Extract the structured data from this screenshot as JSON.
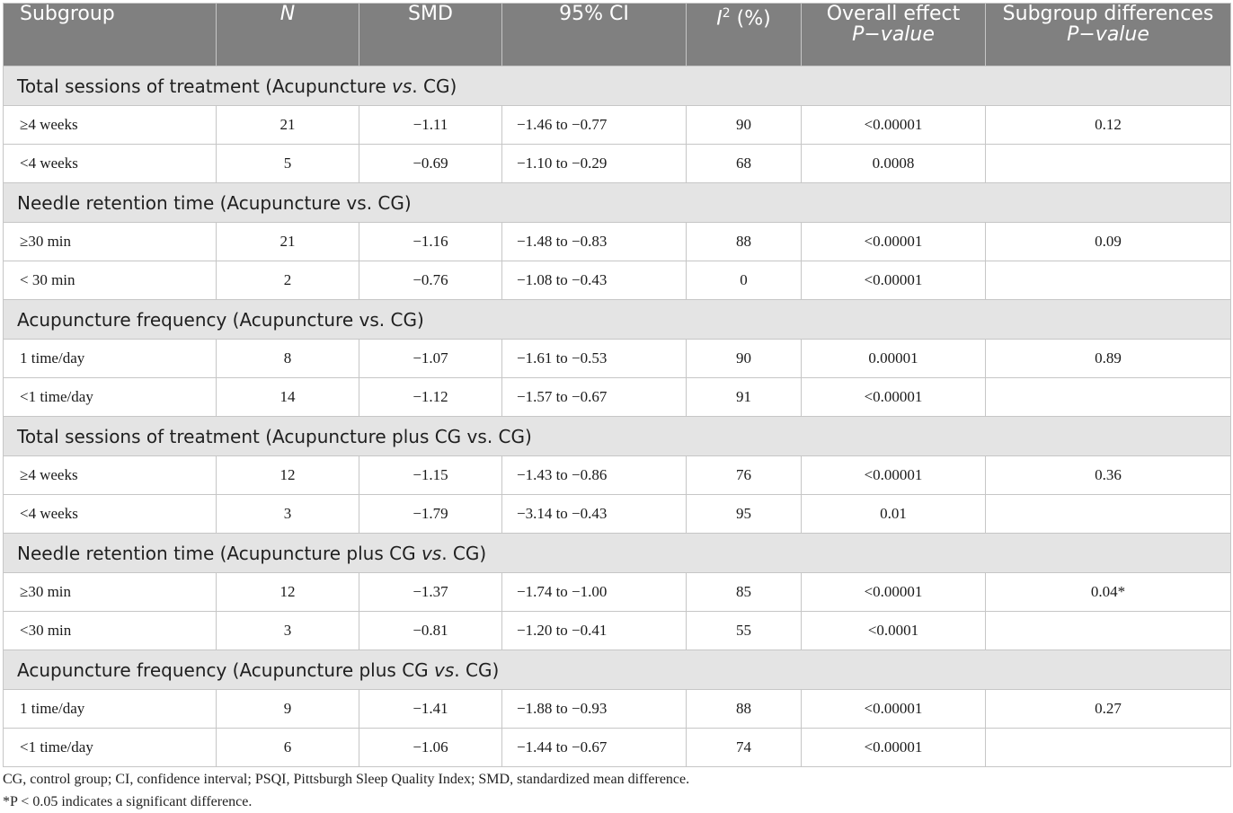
{
  "table": {
    "headers": {
      "subgroup": "Subgroup",
      "n": "N",
      "smd": "SMD",
      "ci": "95% CI",
      "i2_base": "I",
      "i2_sup": "2",
      "i2_rest": " (%)",
      "overall_line1": "Overall effect",
      "overall_line2": "P−value",
      "subdiff_line1": "Subgroup differences",
      "subdiff_line2": "P−value"
    },
    "groups": [
      {
        "title_pre": "Total sessions of treatment (Acupuncture ",
        "title_vs": "vs",
        "title_post": ". CG)",
        "rows": [
          {
            "subgroup": "≥4 weeks",
            "n": "21",
            "smd": "−1.11",
            "ci": "−1.46 to −0.77",
            "i2": "90",
            "overall": "<0.00001",
            "diff": "0.12"
          },
          {
            "subgroup": "<4 weeks",
            "n": "5",
            "smd": "−0.69",
            "ci": "−1.10 to −0.29",
            "i2": "68",
            "overall": "0.0008",
            "diff": ""
          }
        ]
      },
      {
        "title_pre": "Needle retention time (Acupuncture ",
        "title_vs": "vs",
        "title_post": ". CG)",
        "rows": [
          {
            "subgroup": "≥30 min",
            "n": "21",
            "smd": "−1.16",
            "ci": "−1.48 to −0.83",
            "i2": "88",
            "overall": "<0.00001",
            "diff": "0.09"
          },
          {
            "subgroup": "< 30 min",
            "n": "2",
            "smd": "−0.76",
            "ci": "−1.08 to −0.43",
            "i2": "0",
            "overall": "<0.00001",
            "diff": ""
          }
        ]
      },
      {
        "title_pre": "Acupuncture frequency (Acupuncture ",
        "title_vs": "vs",
        "title_post": ". CG)",
        "rows": [
          {
            "subgroup": "1 time/day",
            "n": "8",
            "smd": "−1.07",
            "ci": "−1.61 to −0.53",
            "i2": "90",
            "overall": "0.00001",
            "diff": "0.89"
          },
          {
            "subgroup": "<1 time/day",
            "n": "14",
            "smd": "−1.12",
            "ci": "−1.57 to −0.67",
            "i2": "91",
            "overall": "<0.00001",
            "diff": ""
          }
        ]
      },
      {
        "title_pre": "Total sessions of treatment (Acupuncture plus CG ",
        "title_vs": "vs",
        "title_post": ". CG)",
        "rows": [
          {
            "subgroup": "≥4 weeks",
            "n": "12",
            "smd": "−1.15",
            "ci": "−1.43 to −0.86",
            "i2": "76",
            "overall": "<0.00001",
            "diff": "0.36"
          },
          {
            "subgroup": "<4 weeks",
            "n": "3",
            "smd": "−1.79",
            "ci": "−3.14 to −0.43",
            "i2": "95",
            "overall": "0.01",
            "diff": ""
          }
        ]
      },
      {
        "title_pre": "Needle retention time (Acupuncture plus CG ",
        "title_vs": "vs",
        "title_post": ". CG)",
        "rows": [
          {
            "subgroup": "≥30 min",
            "n": "12",
            "smd": "−1.37",
            "ci": "−1.74 to −1.00",
            "i2": "85",
            "overall": "<0.00001",
            "diff": "0.04*"
          },
          {
            "subgroup": "<30 min",
            "n": "3",
            "smd": "−0.81",
            "ci": "−1.20 to −0.41",
            "i2": "55",
            "overall": "<0.0001",
            "diff": ""
          }
        ]
      },
      {
        "title_pre": "Acupuncture frequency (Acupuncture plus CG ",
        "title_vs": "vs",
        "title_post": ". CG)",
        "rows": [
          {
            "subgroup": "1 time/day",
            "n": "9",
            "smd": "−1.41",
            "ci": "−1.88 to −0.93",
            "i2": "88",
            "overall": "<0.00001",
            "diff": "0.27"
          },
          {
            "subgroup": "<1 time/day",
            "n": "6",
            "smd": "−1.06",
            "ci": "−1.44 to −0.67",
            "i2": "74",
            "overall": "<0.00001",
            "diff": ""
          }
        ]
      }
    ]
  },
  "footnotes": {
    "abbreviations": "CG, control group; CI, confidence interval; PSQI, Pittsburgh Sleep Quality Index; SMD, standardized mean difference.",
    "significance": "*P < 0.05 indicates a significant difference."
  },
  "colors": {
    "header_bg": "#808080",
    "group_bg": "#e4e4e4",
    "border": "#c6c6c6"
  }
}
